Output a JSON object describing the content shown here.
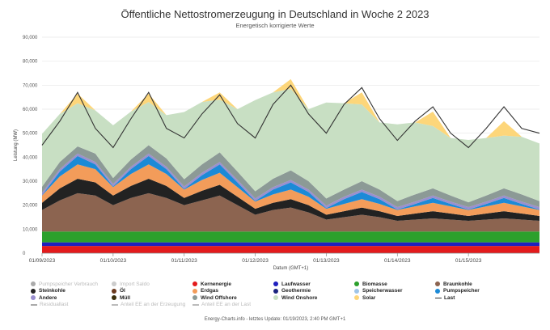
{
  "header": {
    "title": "Öffentliche Nettostromerzeugung in Deutschland in Woche 2 2023",
    "subtitle": "Energetisch korrigierte Werte"
  },
  "legend": {
    "items": [
      {
        "label": "Pumpspeicher Verbrauch",
        "color": "#aaaaaa",
        "type": "dot",
        "active": false
      },
      {
        "label": "Import Saldo",
        "color": "#cccccc",
        "type": "dot",
        "active": false
      },
      {
        "label": "Kernenergie",
        "color": "#e31a1c",
        "type": "dot",
        "active": true
      },
      {
        "label": "Laufwasser",
        "color": "#1f1fbf",
        "type": "dot",
        "active": true
      },
      {
        "label": "Biomasse",
        "color": "#2ca02c",
        "type": "dot",
        "active": true
      },
      {
        "label": "Braunkohle",
        "color": "#8c6450",
        "type": "dot",
        "active": true
      },
      {
        "label": "Steinkohle",
        "color": "#222222",
        "type": "dot",
        "active": true
      },
      {
        "label": "Öl",
        "color": "#6b3a1e",
        "type": "dot",
        "active": true
      },
      {
        "label": "Erdgas",
        "color": "#f39c5a",
        "type": "dot",
        "active": true
      },
      {
        "label": "Geothermie",
        "color": "#1a237e",
        "type": "dot",
        "active": true
      },
      {
        "label": "Speicherwasser",
        "color": "#9fc5e8",
        "type": "dot",
        "active": true
      },
      {
        "label": "Pumpspeicher",
        "color": "#1c8ad7",
        "type": "dot",
        "active": true
      },
      {
        "label": "Andere",
        "color": "#9a8fcf",
        "type": "dot",
        "active": true
      },
      {
        "label": "Müll",
        "color": "#3b2e0a",
        "type": "dot",
        "active": true
      },
      {
        "label": "Wind Offshore",
        "color": "#8c9a96",
        "type": "dot",
        "active": true
      },
      {
        "label": "Wind Onshore",
        "color": "#c8dfc3",
        "type": "dot",
        "active": true
      },
      {
        "label": "Solar",
        "color": "#fdd67a",
        "type": "dot",
        "active": true
      },
      {
        "label": "Last",
        "color": "#333333",
        "type": "line",
        "active": true
      },
      {
        "label": "Residuallast",
        "color": "#aaaaaa",
        "type": "line",
        "active": false
      },
      {
        "label": "Anteil EE an der Erzeugung",
        "color": "#bbbbbb",
        "type": "line",
        "active": false
      },
      {
        "label": "Anteil EE an der Last",
        "color": "#bbbbbb",
        "type": "line",
        "active": false
      }
    ]
  },
  "footer": "Energy-Charts.info - letztes Update: 01/19/2023, 2:40 PM GMT+1",
  "chart_data": {
    "type": "area",
    "title": "Öffentliche Nettostromerzeugung in Deutschland in Woche 2 2023",
    "subtitle": "Energetisch korrigierte Werte",
    "xlabel": "Datum (GMT+1)",
    "ylabel": "Leistung (MW)",
    "ylim": [
      0,
      90000
    ],
    "yticks": [
      0,
      10000,
      20000,
      30000,
      40000,
      50000,
      60000,
      70000,
      80000,
      90000
    ],
    "ytick_labels": [
      "0",
      "10,000",
      "20,000",
      "30,000",
      "40,000",
      "50,000",
      "60,000",
      "70,000",
      "80,000",
      "90,000"
    ],
    "xlim": [
      0,
      7
    ],
    "xtick_positions": [
      0,
      1,
      2,
      3,
      4,
      5,
      6
    ],
    "xtick_labels": [
      "01/09/2023",
      "01/10/2023",
      "01/11/2023",
      "01/12/2023",
      "01/13/2023",
      "01/14/2023",
      "01/15/2023"
    ],
    "x": [
      0,
      0.25,
      0.5,
      0.75,
      1,
      1.25,
      1.5,
      1.75,
      2,
      2.25,
      2.5,
      2.75,
      3,
      3.25,
      3.5,
      3.75,
      4,
      4.25,
      4.5,
      4.75,
      5,
      5.25,
      5.5,
      5.75,
      6,
      6.25,
      6.5,
      6.75,
      7
    ],
    "series": [
      {
        "name": "Kernenergie",
        "color": "#e31a1c",
        "values": [
          3000,
          3000,
          3000,
          3000,
          3000,
          3000,
          3000,
          3000,
          3000,
          3000,
          3000,
          3000,
          3000,
          3000,
          3000,
          3000,
          3000,
          3000,
          3000,
          3000,
          3000,
          3000,
          3000,
          3000,
          3000,
          3000,
          3000,
          3000,
          3000
        ]
      },
      {
        "name": "Laufwasser",
        "color": "#1f1fbf",
        "values": [
          1500,
          1500,
          1500,
          1500,
          1500,
          1500,
          1500,
          1500,
          1500,
          1500,
          1500,
          1500,
          1500,
          1500,
          1500,
          1500,
          1500,
          1500,
          1500,
          1500,
          1500,
          1500,
          1500,
          1500,
          1500,
          1500,
          1500,
          1500,
          1500
        ]
      },
      {
        "name": "Biomasse",
        "color": "#2ca02c",
        "values": [
          4500,
          4500,
          4500,
          4500,
          4500,
          4500,
          4500,
          4500,
          4500,
          4500,
          4500,
          4500,
          4500,
          4500,
          4500,
          4500,
          4500,
          4500,
          4500,
          4500,
          4500,
          4500,
          4500,
          4500,
          4500,
          4500,
          4500,
          4500,
          4500
        ]
      },
      {
        "name": "Braunkohle",
        "color": "#8c6450",
        "values": [
          9000,
          13000,
          16000,
          15000,
          11000,
          14000,
          16000,
          14000,
          11000,
          13000,
          15000,
          11000,
          7000,
          9000,
          10000,
          8000,
          5000,
          6000,
          7000,
          6000,
          4500,
          5000,
          5500,
          5000,
          4500,
          5000,
          5500,
          5000,
          4500
        ]
      },
      {
        "name": "Steinkohle",
        "color": "#222222",
        "values": [
          3000,
          5000,
          6000,
          5500,
          4000,
          5000,
          6000,
          5000,
          3000,
          4000,
          4500,
          3500,
          2500,
          3000,
          3500,
          3000,
          2000,
          2500,
          3000,
          2500,
          2000,
          2500,
          3000,
          2500,
          2000,
          2500,
          3000,
          2500,
          2000
        ]
      },
      {
        "name": "Erdgas",
        "color": "#f39c5a",
        "values": [
          3000,
          5000,
          6000,
          5500,
          3500,
          5000,
          6000,
          5000,
          3500,
          4500,
          5000,
          4000,
          3000,
          3500,
          4000,
          3500,
          2500,
          3000,
          3500,
          3000,
          2500,
          3000,
          3500,
          3000,
          2500,
          3000,
          3500,
          3000,
          2500
        ]
      },
      {
        "name": "Pumpspeicher",
        "color": "#1c8ad7",
        "values": [
          200,
          2000,
          3500,
          2000,
          300,
          2000,
          3500,
          2000,
          300,
          2000,
          3500,
          2000,
          300,
          2000,
          3000,
          2000,
          300,
          2000,
          3000,
          2000,
          200,
          1000,
          2000,
          1000,
          200,
          1000,
          2000,
          1000,
          200
        ]
      },
      {
        "name": "Andere",
        "color": "#9a8fcf",
        "values": [
          1000,
          1000,
          1000,
          1000,
          1000,
          1000,
          1000,
          1000,
          1000,
          1000,
          1000,
          1000,
          1000,
          1000,
          1000,
          1000,
          1000,
          1000,
          1000,
          1000,
          1000,
          1000,
          1000,
          1000,
          1000,
          1000,
          1000,
          1000,
          1000
        ]
      },
      {
        "name": "Wind Offshore",
        "color": "#8c9a96",
        "values": [
          2500,
          3000,
          3000,
          3500,
          2500,
          3000,
          3500,
          3500,
          3000,
          3500,
          4000,
          3500,
          3000,
          3500,
          4000,
          3500,
          3000,
          3000,
          3500,
          3000,
          2500,
          3000,
          3000,
          2500,
          2000,
          2500,
          3000,
          3000,
          2500
        ]
      },
      {
        "name": "Wind Onshore",
        "color": "#c8dfc3",
        "values": [
          22000,
          20000,
          18000,
          18000,
          22000,
          20000,
          18000,
          18000,
          28000,
          26000,
          22000,
          26000,
          38000,
          36000,
          34000,
          30000,
          40000,
          36000,
          32000,
          28000,
          32000,
          30000,
          26000,
          24000,
          26000,
          24000,
          22000,
          24000,
          24000
        ]
      },
      {
        "name": "Solar",
        "color": "#fdd67a",
        "values": [
          0,
          0,
          4000,
          0,
          0,
          0,
          3500,
          0,
          0,
          0,
          3000,
          0,
          0,
          0,
          4000,
          0,
          0,
          0,
          5000,
          0,
          0,
          0,
          6000,
          0,
          0,
          0,
          6000,
          0,
          0
        ]
      }
    ],
    "line": {
      "name": "Last",
      "color": "#333333",
      "values": [
        45000,
        55000,
        67000,
        52000,
        44000,
        56000,
        67000,
        52000,
        48000,
        58000,
        66000,
        54000,
        48000,
        62000,
        70000,
        58000,
        50000,
        62000,
        69000,
        56000,
        47000,
        55000,
        61000,
        50000,
        44000,
        52000,
        61000,
        52000,
        50000
      ]
    }
  }
}
